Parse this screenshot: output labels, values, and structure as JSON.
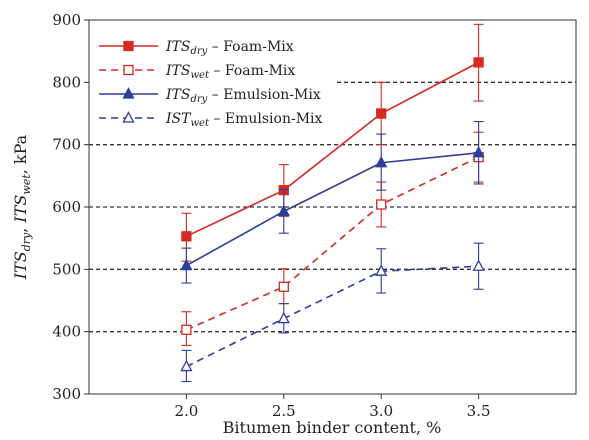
{
  "chart_data": {
    "type": "line",
    "xlabel": "Bitumen binder content, %",
    "ylabel": {
      "part1": "ITS",
      "sub1": "dry",
      "sep": ", ",
      "part2": "ITS",
      "sub2": "wet",
      "unit": ", kPa"
    },
    "x": [
      2.0,
      2.5,
      3.0,
      3.5
    ],
    "x_tick_labels": [
      "2.0",
      "2.5",
      "3.0",
      "3.5"
    ],
    "xlim": [
      1.5,
      4.0
    ],
    "ylim": [
      300,
      900
    ],
    "y_ticks": [
      300,
      400,
      500,
      600,
      700,
      800,
      900
    ],
    "grid": "horizontal dashed at 400, 500, 600, 700, 800",
    "legend_position": "top-left",
    "series": [
      {
        "name": {
          "main": "ITS",
          "sub": "dry",
          "rest": " – Foam-Mix"
        },
        "values": [
          553,
          627,
          750,
          832
        ],
        "err_low": [
          513,
          585,
          700,
          770
        ],
        "err_high": [
          590,
          668,
          800,
          893
        ],
        "color": "#d42a20",
        "line": "solid",
        "marker": "square-filled"
      },
      {
        "name": {
          "main": "ITS",
          "sub": "wet",
          "rest": " – Foam-Mix"
        },
        "values": [
          403,
          472,
          604,
          680
        ],
        "err_low": [
          378,
          445,
          568,
          640
        ],
        "err_high": [
          432,
          501,
          640,
          720
        ],
        "color": "#d42a20",
        "line": "dashed",
        "marker": "square-open"
      },
      {
        "name": {
          "main": "ITS",
          "sub": "dry",
          "rest": " – Emulsion-Mix"
        },
        "values": [
          506,
          593,
          671,
          687
        ],
        "err_low": [
          478,
          558,
          627,
          637
        ],
        "err_high": [
          534,
          628,
          717,
          737
        ],
        "color": "#2c3f9a",
        "line": "solid",
        "marker": "triangle-filled"
      },
      {
        "name": {
          "main": "IST",
          "sub": "wet",
          "rest": " – Emulsion-Mix"
        },
        "values": [
          344,
          421,
          497,
          505
        ],
        "err_low": [
          320,
          398,
          462,
          468
        ],
        "err_high": [
          370,
          445,
          533,
          542
        ],
        "color": "#2c3f9a",
        "line": "dashed",
        "marker": "triangle-open"
      }
    ]
  }
}
